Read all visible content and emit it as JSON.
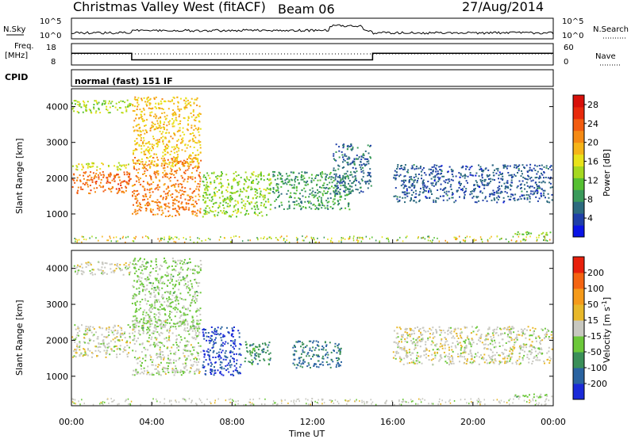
{
  "header": {
    "station": "Christmas Valley West (fitACF)",
    "beam": "Beam 06",
    "date": "27/Aug/2014"
  },
  "noise_panel": {
    "left_label": "N.Sky",
    "right_label": "N.Search",
    "left_ticks": [
      "10^5",
      "10^0"
    ],
    "right_ticks": [
      "10^5",
      "10^0"
    ]
  },
  "freq_panel": {
    "left_label_line1": "Freq.",
    "left_label_line2": "[MHz]",
    "right_label": "Nave",
    "left_ticks": [
      "18",
      "8"
    ],
    "right_ticks": [
      "60",
      "0"
    ],
    "freq_steps": [
      {
        "t_start": 0.0,
        "t_end": 3.0,
        "mhz": 13.5
      },
      {
        "t_start": 3.0,
        "t_end": 15.0,
        "mhz": 10.4
      },
      {
        "t_start": 15.0,
        "t_end": 24.0,
        "mhz": 13.5
      }
    ]
  },
  "cpid": {
    "label": "CPID",
    "text": "normal (fast) 151 IF"
  },
  "chart_data": [
    {
      "type": "heatmap",
      "name": "power",
      "ylabel": "Slant Range [km]",
      "xlabel": "Time UT",
      "xlim": [
        0,
        24
      ],
      "ylim": [
        180,
        4500
      ],
      "x_ticks": [
        "00:00",
        "04:00",
        "08:00",
        "12:00",
        "16:00",
        "20:00",
        "00:00"
      ],
      "y_ticks": [
        "1000",
        "2000",
        "3000",
        "4000"
      ],
      "colorbar": {
        "label": "Power [dB]",
        "range": [
          0,
          30
        ],
        "ticks": [
          "4",
          "8",
          "12",
          "16",
          "20",
          "24",
          "28"
        ],
        "colors": [
          "#0a14e6",
          "#1f3fa8",
          "#2c6a7e",
          "#3a9a5a",
          "#56c032",
          "#a5d820",
          "#e8e21a",
          "#f5b418",
          "#f58a14",
          "#f25c10",
          "#e82a0c",
          "#d8100a"
        ]
      },
      "regions": [
        {
          "t0": 0.0,
          "t1": 3.0,
          "r0": 1550,
          "r1": 2200,
          "value": 23
        },
        {
          "t0": 0.0,
          "t1": 3.0,
          "r0": 2200,
          "r1": 2450,
          "value": 16
        },
        {
          "t0": 0.0,
          "t1": 3.0,
          "r0": 3800,
          "r1": 4200,
          "value": 14
        },
        {
          "t0": 3.0,
          "t1": 6.5,
          "r0": 900,
          "r1": 2600,
          "value": 22
        },
        {
          "t0": 3.0,
          "t1": 6.5,
          "r0": 2300,
          "r1": 4300,
          "value": 18
        },
        {
          "t0": 6.5,
          "t1": 10.0,
          "r0": 900,
          "r1": 2200,
          "value": 13
        },
        {
          "t0": 10.0,
          "t1": 14.0,
          "r0": 1100,
          "r1": 2200,
          "value": 9
        },
        {
          "t0": 13.0,
          "t1": 15.0,
          "r0": 1500,
          "r1": 3000,
          "value": 6
        },
        {
          "t0": 16.0,
          "t1": 24.0,
          "r0": 1300,
          "r1": 2400,
          "value": 5
        },
        {
          "t0": 22.0,
          "t1": 24.0,
          "r0": 380,
          "r1": 520,
          "value": 12
        }
      ]
    },
    {
      "type": "heatmap",
      "name": "velocity",
      "ylabel": "Slant Range [km]",
      "xlabel": "Time UT",
      "xlim": [
        0,
        24
      ],
      "ylim": [
        180,
        4500
      ],
      "x_ticks": [
        "00:00",
        "04:00",
        "08:00",
        "12:00",
        "16:00",
        "20:00",
        "00:00"
      ],
      "y_ticks": [
        "1000",
        "2000",
        "3000",
        "4000"
      ],
      "colorbar": {
        "label": "Velocity [m s^-1]",
        "range": [
          -250,
          250
        ],
        "ticks": [
          "200",
          "100",
          "50",
          "15",
          "-15",
          "-50",
          "-100",
          "-200"
        ],
        "colors": [
          "#1a2ad8",
          "#2a63a0",
          "#3a8f58",
          "#6cc83a",
          "#c8c8c0",
          "#e8b82a",
          "#f59a1a",
          "#f46412",
          "#e8200c"
        ]
      },
      "regions": [
        {
          "t0": 0.0,
          "t1": 3.0,
          "r0": 1500,
          "r1": 2450,
          "value": 0
        },
        {
          "t0": 0.0,
          "t1": 3.0,
          "r0": 3800,
          "r1": 4200,
          "value": 0
        },
        {
          "t0": 3.0,
          "t1": 6.5,
          "r0": 1000,
          "r1": 2600,
          "value": -10
        },
        {
          "t0": 3.0,
          "t1": 6.5,
          "r0": 2300,
          "r1": 4300,
          "value": -40
        },
        {
          "t0": 6.5,
          "t1": 8.5,
          "r0": 1000,
          "r1": 2400,
          "value": -200
        },
        {
          "t0": 8.5,
          "t1": 10.0,
          "r0": 1300,
          "r1": 2000,
          "value": -110
        },
        {
          "t0": 11.0,
          "t1": 13.5,
          "r0": 1200,
          "r1": 2000,
          "value": -150
        },
        {
          "t0": 16.0,
          "t1": 24.0,
          "r0": 1300,
          "r1": 2400,
          "value": 0
        },
        {
          "t0": 22.0,
          "t1": 24.0,
          "r0": 380,
          "r1": 520,
          "value": -40
        }
      ]
    }
  ]
}
